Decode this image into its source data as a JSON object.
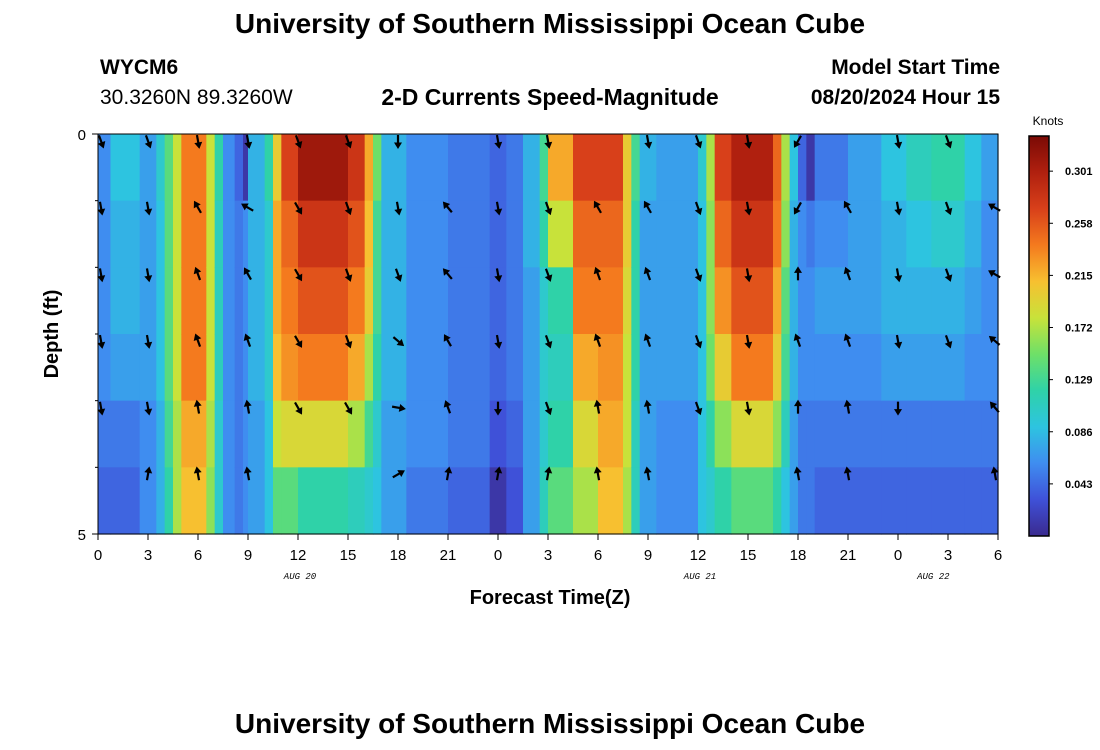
{
  "header": {
    "title": "University of Southern Mississippi Ocean Cube",
    "station_id": "WYCM6",
    "coordinates": "30.3260N  89.3260W",
    "chart_title": "2-D Currents Speed-Magnitude",
    "model_start_label": "Model Start Time",
    "model_start_time": "08/20/2024 Hour 15"
  },
  "footer": {
    "title": "University of Southern Mississippi Ocean Cube"
  },
  "colors": {
    "text": "#000000",
    "scale": [
      "#3a2a8f",
      "#3f51d8",
      "#3f8df0",
      "#2dc4e0",
      "#2fd2a8",
      "#6ee068",
      "#c8e23a",
      "#f7c030",
      "#f47a1e",
      "#d8401a",
      "#b0200f",
      "#7a0a05"
    ]
  },
  "chart_data": {
    "type": "heatmap",
    "title": "2-D Currents Speed-Magnitude",
    "xlabel": "Forecast Time(Z)",
    "ylabel": "Depth (ft)",
    "colorbar_label": "Knots",
    "ylim": [
      0,
      5
    ],
    "xlim": [
      0,
      54
    ],
    "y_ticks": [
      "0",
      "5"
    ],
    "x_ticks": [
      "0",
      "3",
      "6",
      "9",
      "12",
      "15",
      "18",
      "21",
      "0",
      "3",
      "6",
      "9",
      "12",
      "15",
      "18",
      "21",
      "0",
      "3",
      "6"
    ],
    "date_labels": [
      {
        "label": "AUG 20",
        "hour": 12
      },
      {
        "label": "AUG 21",
        "hour": 36
      },
      {
        "label": "AUG 22",
        "hour": 50
      }
    ],
    "colorbar_ticks": [
      "0.301",
      "0.258",
      "0.215",
      "0.172",
      "0.129",
      "0.086",
      "0.043"
    ],
    "colorbar_range": [
      0.0,
      0.33
    ],
    "depth_rows": 6,
    "time_columns": [
      {
        "t0": 0,
        "t1": 0.75,
        "values": [
          0.06,
          0.06,
          0.06,
          0.06,
          0.05,
          0.04
        ]
      },
      {
        "t0": 0.75,
        "t1": 2.5,
        "values": [
          0.09,
          0.08,
          0.08,
          0.07,
          0.05,
          0.04
        ]
      },
      {
        "t0": 2.5,
        "t1": 3.5,
        "values": [
          0.07,
          0.07,
          0.07,
          0.07,
          0.06,
          0.06
        ]
      },
      {
        "t0": 3.5,
        "t1": 4.0,
        "values": [
          0.1,
          0.09,
          0.09,
          0.09,
          0.08,
          0.08
        ]
      },
      {
        "t0": 4.0,
        "t1": 4.5,
        "values": [
          0.14,
          0.14,
          0.14,
          0.14,
          0.13,
          0.12
        ]
      },
      {
        "t0": 4.5,
        "t1": 5.0,
        "values": [
          0.18,
          0.18,
          0.18,
          0.18,
          0.17,
          0.17
        ]
      },
      {
        "t0": 5.0,
        "t1": 6.5,
        "values": [
          0.24,
          0.24,
          0.24,
          0.24,
          0.22,
          0.21
        ]
      },
      {
        "t0": 6.5,
        "t1": 7.0,
        "values": [
          0.18,
          0.18,
          0.18,
          0.18,
          0.17,
          0.16
        ]
      },
      {
        "t0": 7.0,
        "t1": 7.5,
        "values": [
          0.12,
          0.11,
          0.11,
          0.11,
          0.1,
          0.1
        ]
      },
      {
        "t0": 7.5,
        "t1": 8.2,
        "values": [
          0.06,
          0.06,
          0.06,
          0.06,
          0.06,
          0.06
        ]
      },
      {
        "t0": 8.2,
        "t1": 8.7,
        "values": [
          0.04,
          0.05,
          0.05,
          0.05,
          0.05,
          0.05
        ]
      },
      {
        "t0": 8.7,
        "t1": 9.0,
        "values": [
          0.01,
          0.06,
          0.06,
          0.06,
          0.06,
          0.06
        ]
      },
      {
        "t0": 9.0,
        "t1": 10.0,
        "values": [
          0.08,
          0.08,
          0.08,
          0.08,
          0.07,
          0.07
        ]
      },
      {
        "t0": 10.0,
        "t1": 10.5,
        "values": [
          0.12,
          0.1,
          0.1,
          0.1,
          0.09,
          0.09
        ]
      },
      {
        "t0": 10.5,
        "t1": 11.0,
        "values": [
          0.2,
          0.22,
          0.22,
          0.21,
          0.18,
          0.14
        ]
      },
      {
        "t0": 11.0,
        "t1": 12.0,
        "values": [
          0.27,
          0.25,
          0.24,
          0.23,
          0.19,
          0.14
        ]
      },
      {
        "t0": 12.0,
        "t1": 15.0,
        "values": [
          0.31,
          0.28,
          0.26,
          0.24,
          0.19,
          0.12
        ]
      },
      {
        "t0": 15.0,
        "t1": 16.0,
        "values": [
          0.28,
          0.26,
          0.24,
          0.22,
          0.17,
          0.11
        ]
      },
      {
        "t0": 16.0,
        "t1": 16.5,
        "values": [
          0.22,
          0.21,
          0.2,
          0.17,
          0.13,
          0.1
        ]
      },
      {
        "t0": 16.5,
        "t1": 17.0,
        "values": [
          0.15,
          0.13,
          0.13,
          0.12,
          0.1,
          0.09
        ]
      },
      {
        "t0": 17.0,
        "t1": 18.5,
        "values": [
          0.08,
          0.08,
          0.08,
          0.08,
          0.07,
          0.07
        ]
      },
      {
        "t0": 18.5,
        "t1": 21.0,
        "values": [
          0.06,
          0.06,
          0.06,
          0.06,
          0.06,
          0.05
        ]
      },
      {
        "t0": 21.0,
        "t1": 23.5,
        "values": [
          0.05,
          0.05,
          0.05,
          0.05,
          0.05,
          0.04
        ]
      },
      {
        "t0": 23.5,
        "t1": 24.5,
        "values": [
          0.04,
          0.04,
          0.04,
          0.04,
          0.03,
          0.01
        ]
      },
      {
        "t0": 24.5,
        "t1": 25.5,
        "values": [
          0.05,
          0.05,
          0.05,
          0.05,
          0.04,
          0.03
        ]
      },
      {
        "t0": 25.5,
        "t1": 26.5,
        "values": [
          0.08,
          0.08,
          0.07,
          0.07,
          0.07,
          0.07
        ]
      },
      {
        "t0": 26.5,
        "t1": 27.0,
        "values": [
          0.13,
          0.12,
          0.1,
          0.1,
          0.1,
          0.11
        ]
      },
      {
        "t0": 27.0,
        "t1": 28.5,
        "values": [
          0.22,
          0.18,
          0.12,
          0.11,
          0.12,
          0.14
        ]
      },
      {
        "t0": 28.5,
        "t1": 30.0,
        "values": [
          0.27,
          0.25,
          0.24,
          0.22,
          0.19,
          0.17
        ]
      },
      {
        "t0": 30.0,
        "t1": 31.5,
        "values": [
          0.27,
          0.25,
          0.24,
          0.23,
          0.22,
          0.21
        ]
      },
      {
        "t0": 31.5,
        "t1": 32.0,
        "values": [
          0.2,
          0.2,
          0.19,
          0.18,
          0.18,
          0.17
        ]
      },
      {
        "t0": 32.0,
        "t1": 32.5,
        "values": [
          0.13,
          0.12,
          0.12,
          0.12,
          0.11,
          0.11
        ]
      },
      {
        "t0": 32.5,
        "t1": 33.5,
        "values": [
          0.08,
          0.07,
          0.07,
          0.07,
          0.07,
          0.07
        ]
      },
      {
        "t0": 33.5,
        "t1": 36.0,
        "values": [
          0.07,
          0.07,
          0.07,
          0.07,
          0.06,
          0.06
        ]
      },
      {
        "t0": 36.0,
        "t1": 36.5,
        "values": [
          0.1,
          0.09,
          0.09,
          0.09,
          0.09,
          0.09
        ]
      },
      {
        "t0": 36.5,
        "t1": 37.0,
        "values": [
          0.17,
          0.16,
          0.16,
          0.15,
          0.12,
          0.1
        ]
      },
      {
        "t0": 37.0,
        "t1": 38.0,
        "values": [
          0.27,
          0.25,
          0.23,
          0.2,
          0.16,
          0.12
        ]
      },
      {
        "t0": 38.0,
        "t1": 40.5,
        "values": [
          0.3,
          0.28,
          0.26,
          0.24,
          0.19,
          0.14
        ]
      },
      {
        "t0": 40.5,
        "t1": 41.0,
        "values": [
          0.25,
          0.24,
          0.22,
          0.2,
          0.16,
          0.12
        ]
      },
      {
        "t0": 41.0,
        "t1": 41.5,
        "values": [
          0.17,
          0.16,
          0.14,
          0.13,
          0.11,
          0.09
        ]
      },
      {
        "t0": 41.5,
        "t1": 42.0,
        "values": [
          0.09,
          0.08,
          0.08,
          0.08,
          0.07,
          0.07
        ]
      },
      {
        "t0": 42.0,
        "t1": 42.5,
        "values": [
          0.04,
          0.06,
          0.06,
          0.06,
          0.05,
          0.05
        ]
      },
      {
        "t0": 42.5,
        "t1": 43.0,
        "values": [
          0.01,
          0.05,
          0.06,
          0.06,
          0.05,
          0.05
        ]
      },
      {
        "t0": 43.0,
        "t1": 45.0,
        "values": [
          0.05,
          0.06,
          0.07,
          0.06,
          0.05,
          0.04
        ]
      },
      {
        "t0": 45.0,
        "t1": 47.0,
        "values": [
          0.07,
          0.07,
          0.07,
          0.06,
          0.05,
          0.04
        ]
      },
      {
        "t0": 47.0,
        "t1": 48.5,
        "values": [
          0.09,
          0.08,
          0.08,
          0.07,
          0.05,
          0.04
        ]
      },
      {
        "t0": 48.5,
        "t1": 50.0,
        "values": [
          0.11,
          0.09,
          0.08,
          0.07,
          0.05,
          0.04
        ]
      },
      {
        "t0": 50.0,
        "t1": 52.0,
        "values": [
          0.12,
          0.1,
          0.08,
          0.07,
          0.05,
          0.04
        ]
      },
      {
        "t0": 52.0,
        "t1": 53.0,
        "values": [
          0.09,
          0.08,
          0.07,
          0.06,
          0.05,
          0.04
        ]
      },
      {
        "t0": 53.0,
        "t1": 54.0,
        "values": [
          0.07,
          0.06,
          0.06,
          0.06,
          0.05,
          0.04
        ]
      }
    ],
    "vectors": [
      {
        "hour": 0,
        "depth_level": 0,
        "dir": 160
      },
      {
        "hour": 0,
        "depth_level": 1,
        "dir": 170
      },
      {
        "hour": 0,
        "depth_level": 2,
        "dir": 170
      },
      {
        "hour": 0,
        "depth_level": 3,
        "dir": 170
      },
      {
        "hour": 0,
        "depth_level": 4,
        "dir": 170
      },
      {
        "hour": 3,
        "depth_level": 0,
        "dir": 160
      },
      {
        "hour": 3,
        "depth_level": 1,
        "dir": 170
      },
      {
        "hour": 3,
        "depth_level": 2,
        "dir": 170
      },
      {
        "hour": 3,
        "depth_level": 3,
        "dir": 170
      },
      {
        "hour": 3,
        "depth_level": 4,
        "dir": 170
      },
      {
        "hour": 3,
        "depth_level": 5,
        "dir": 10
      },
      {
        "hour": 6,
        "depth_level": 0,
        "dir": 170
      },
      {
        "hour": 6,
        "depth_level": 1,
        "dir": 330
      },
      {
        "hour": 6,
        "depth_level": 2,
        "dir": 340
      },
      {
        "hour": 6,
        "depth_level": 3,
        "dir": 340
      },
      {
        "hour": 6,
        "depth_level": 4,
        "dir": 350
      },
      {
        "hour": 6,
        "depth_level": 5,
        "dir": 350
      },
      {
        "hour": 9,
        "depth_level": 0,
        "dir": 170
      },
      {
        "hour": 9,
        "depth_level": 1,
        "dir": 300
      },
      {
        "hour": 9,
        "depth_level": 2,
        "dir": 330
      },
      {
        "hour": 9,
        "depth_level": 3,
        "dir": 340
      },
      {
        "hour": 9,
        "depth_level": 4,
        "dir": 350
      },
      {
        "hour": 9,
        "depth_level": 5,
        "dir": 350
      },
      {
        "hour": 12,
        "depth_level": 0,
        "dir": 160
      },
      {
        "hour": 12,
        "depth_level": 1,
        "dir": 150
      },
      {
        "hour": 12,
        "depth_level": 2,
        "dir": 150
      },
      {
        "hour": 12,
        "depth_level": 3,
        "dir": 150
      },
      {
        "hour": 12,
        "depth_level": 4,
        "dir": 150
      },
      {
        "hour": 15,
        "depth_level": 0,
        "dir": 160
      },
      {
        "hour": 15,
        "depth_level": 1,
        "dir": 160
      },
      {
        "hour": 15,
        "depth_level": 2,
        "dir": 160
      },
      {
        "hour": 15,
        "depth_level": 3,
        "dir": 160
      },
      {
        "hour": 15,
        "depth_level": 4,
        "dir": 150
      },
      {
        "hour": 18,
        "depth_level": 0,
        "dir": 180
      },
      {
        "hour": 18,
        "depth_level": 1,
        "dir": 170
      },
      {
        "hour": 18,
        "depth_level": 2,
        "dir": 160
      },
      {
        "hour": 18,
        "depth_level": 3,
        "dir": 130
      },
      {
        "hour": 18,
        "depth_level": 4,
        "dir": 100
      },
      {
        "hour": 18,
        "depth_level": 5,
        "dir": 60
      },
      {
        "hour": 21,
        "depth_level": 1,
        "dir": 320
      },
      {
        "hour": 21,
        "depth_level": 2,
        "dir": 320
      },
      {
        "hour": 21,
        "depth_level": 3,
        "dir": 330
      },
      {
        "hour": 21,
        "depth_level": 4,
        "dir": 340
      },
      {
        "hour": 21,
        "depth_level": 5,
        "dir": 10
      },
      {
        "hour": 24,
        "depth_level": 0,
        "dir": 170
      },
      {
        "hour": 24,
        "depth_level": 1,
        "dir": 170
      },
      {
        "hour": 24,
        "depth_level": 2,
        "dir": 170
      },
      {
        "hour": 24,
        "depth_level": 3,
        "dir": 170
      },
      {
        "hour": 24,
        "depth_level": 4,
        "dir": 180
      },
      {
        "hour": 24,
        "depth_level": 5,
        "dir": 10
      },
      {
        "hour": 27,
        "depth_level": 0,
        "dir": 170
      },
      {
        "hour": 27,
        "depth_level": 1,
        "dir": 160
      },
      {
        "hour": 27,
        "depth_level": 2,
        "dir": 160
      },
      {
        "hour": 27,
        "depth_level": 3,
        "dir": 160
      },
      {
        "hour": 27,
        "depth_level": 4,
        "dir": 160
      },
      {
        "hour": 27,
        "depth_level": 5,
        "dir": 10
      },
      {
        "hour": 30,
        "depth_level": 1,
        "dir": 330
      },
      {
        "hour": 30,
        "depth_level": 2,
        "dir": 340
      },
      {
        "hour": 30,
        "depth_level": 3,
        "dir": 340
      },
      {
        "hour": 30,
        "depth_level": 4,
        "dir": 350
      },
      {
        "hour": 30,
        "depth_level": 5,
        "dir": 350
      },
      {
        "hour": 33,
        "depth_level": 0,
        "dir": 170
      },
      {
        "hour": 33,
        "depth_level": 1,
        "dir": 330
      },
      {
        "hour": 33,
        "depth_level": 2,
        "dir": 340
      },
      {
        "hour": 33,
        "depth_level": 3,
        "dir": 340
      },
      {
        "hour": 33,
        "depth_level": 4,
        "dir": 350
      },
      {
        "hour": 33,
        "depth_level": 5,
        "dir": 350
      },
      {
        "hour": 36,
        "depth_level": 0,
        "dir": 160
      },
      {
        "hour": 36,
        "depth_level": 1,
        "dir": 160
      },
      {
        "hour": 36,
        "depth_level": 2,
        "dir": 160
      },
      {
        "hour": 36,
        "depth_level": 3,
        "dir": 160
      },
      {
        "hour": 36,
        "depth_level": 4,
        "dir": 160
      },
      {
        "hour": 39,
        "depth_level": 0,
        "dir": 170
      },
      {
        "hour": 39,
        "depth_level": 1,
        "dir": 170
      },
      {
        "hour": 39,
        "depth_level": 2,
        "dir": 170
      },
      {
        "hour": 39,
        "depth_level": 3,
        "dir": 170
      },
      {
        "hour": 39,
        "depth_level": 4,
        "dir": 170
      },
      {
        "hour": 42,
        "depth_level": 0,
        "dir": 210
      },
      {
        "hour": 42,
        "depth_level": 1,
        "dir": 210
      },
      {
        "hour": 42,
        "depth_level": 2,
        "dir": 0
      },
      {
        "hour": 42,
        "depth_level": 3,
        "dir": 340
      },
      {
        "hour": 42,
        "depth_level": 4,
        "dir": 0
      },
      {
        "hour": 42,
        "depth_level": 5,
        "dir": 350
      },
      {
        "hour": 45,
        "depth_level": 1,
        "dir": 330
      },
      {
        "hour": 45,
        "depth_level": 2,
        "dir": 340
      },
      {
        "hour": 45,
        "depth_level": 3,
        "dir": 340
      },
      {
        "hour": 45,
        "depth_level": 4,
        "dir": 350
      },
      {
        "hour": 45,
        "depth_level": 5,
        "dir": 350
      },
      {
        "hour": 48,
        "depth_level": 0,
        "dir": 170
      },
      {
        "hour": 48,
        "depth_level": 1,
        "dir": 170
      },
      {
        "hour": 48,
        "depth_level": 2,
        "dir": 170
      },
      {
        "hour": 48,
        "depth_level": 3,
        "dir": 170
      },
      {
        "hour": 48,
        "depth_level": 4,
        "dir": 180
      },
      {
        "hour": 51,
        "depth_level": 0,
        "dir": 160
      },
      {
        "hour": 51,
        "depth_level": 1,
        "dir": 160
      },
      {
        "hour": 51,
        "depth_level": 2,
        "dir": 160
      },
      {
        "hour": 51,
        "depth_level": 3,
        "dir": 160
      },
      {
        "hour": 54,
        "depth_level": 1,
        "dir": 300
      },
      {
        "hour": 54,
        "depth_level": 2,
        "dir": 300
      },
      {
        "hour": 54,
        "depth_level": 3,
        "dir": 310
      },
      {
        "hour": 54,
        "depth_level": 4,
        "dir": 320
      },
      {
        "hour": 54,
        "depth_level": 5,
        "dir": 350
      }
    ]
  }
}
